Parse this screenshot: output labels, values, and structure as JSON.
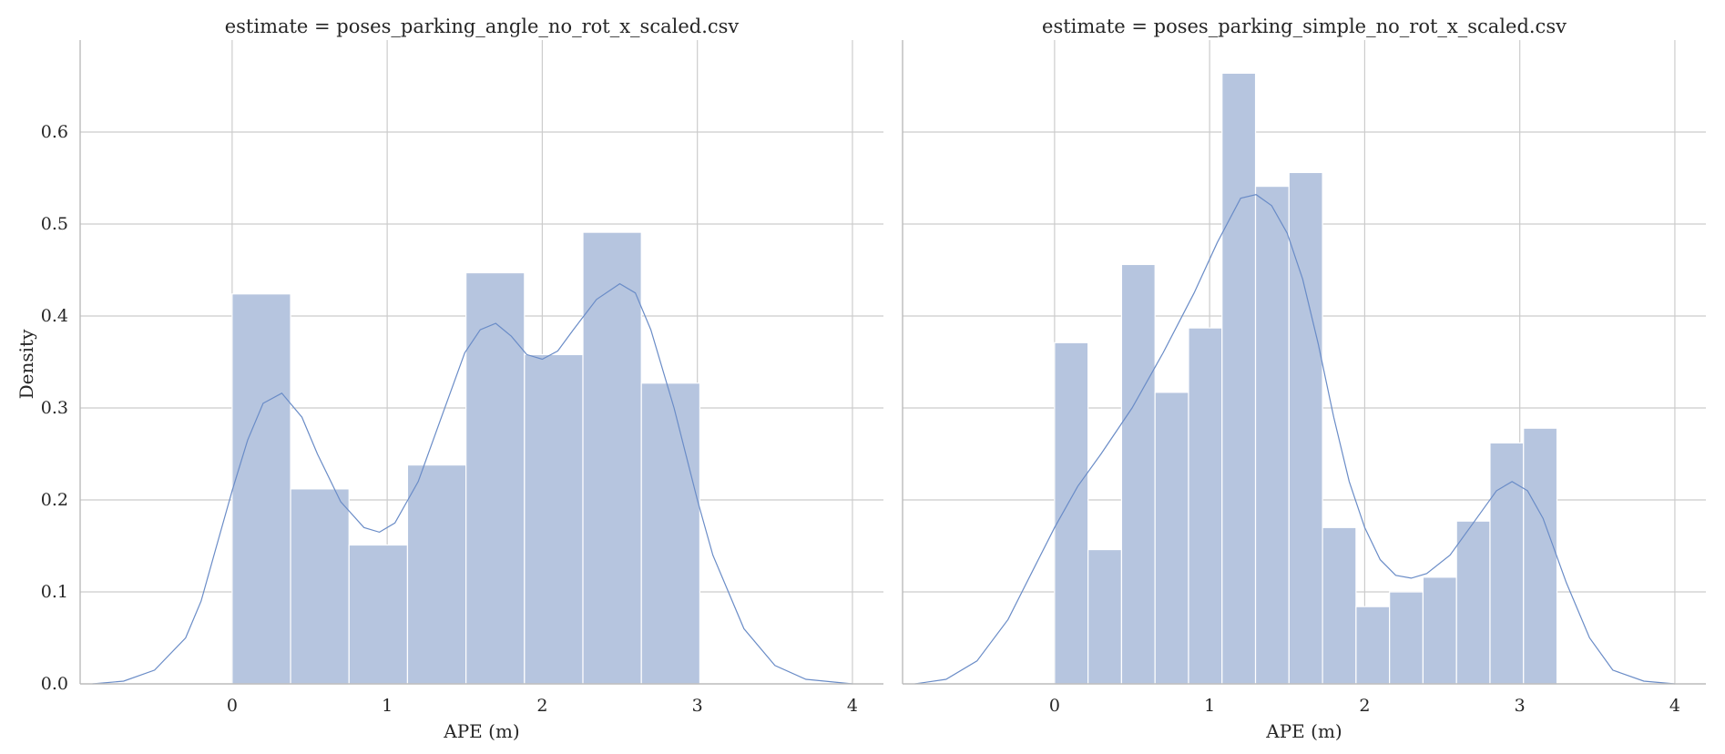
{
  "chart_data": {
    "type": "bar",
    "ylabel": "Density",
    "ylim": [
      0,
      0.7
    ],
    "yticks": [
      0.0,
      0.1,
      0.2,
      0.3,
      0.4,
      0.5,
      0.6
    ],
    "ytick_labels": [
      "0.0",
      "0.1",
      "0.2",
      "0.3",
      "0.4",
      "0.5",
      "0.6"
    ],
    "grid": true,
    "panels": [
      {
        "title": "estimate = poses_parking_angle_no_rot_x_scaled.csv",
        "xlabel": "APE (m)",
        "xlim": [
          -0.98,
          4.2
        ],
        "xticks": [
          0,
          1,
          2,
          3,
          4
        ],
        "xtick_labels": [
          "0",
          "1",
          "2",
          "3",
          "4"
        ],
        "bin_edges": [
          0.0,
          0.377,
          0.754,
          1.131,
          1.508,
          1.885,
          2.262,
          2.639,
          3.016
        ],
        "values": [
          0.424,
          0.212,
          0.151,
          0.238,
          0.447,
          0.358,
          0.491,
          0.327
        ],
        "kde": [
          [
            -0.9,
            0.0
          ],
          [
            -0.7,
            0.003
          ],
          [
            -0.5,
            0.015
          ],
          [
            -0.3,
            0.05
          ],
          [
            -0.2,
            0.09
          ],
          [
            -0.1,
            0.15
          ],
          [
            0.0,
            0.21
          ],
          [
            0.1,
            0.265
          ],
          [
            0.2,
            0.305
          ],
          [
            0.32,
            0.316
          ],
          [
            0.45,
            0.29
          ],
          [
            0.55,
            0.25
          ],
          [
            0.7,
            0.198
          ],
          [
            0.85,
            0.17
          ],
          [
            0.95,
            0.165
          ],
          [
            1.05,
            0.175
          ],
          [
            1.2,
            0.22
          ],
          [
            1.35,
            0.29
          ],
          [
            1.5,
            0.36
          ],
          [
            1.6,
            0.385
          ],
          [
            1.7,
            0.392
          ],
          [
            1.8,
            0.378
          ],
          [
            1.9,
            0.358
          ],
          [
            2.0,
            0.353
          ],
          [
            2.1,
            0.362
          ],
          [
            2.2,
            0.385
          ],
          [
            2.35,
            0.418
          ],
          [
            2.5,
            0.435
          ],
          [
            2.6,
            0.425
          ],
          [
            2.7,
            0.385
          ],
          [
            2.85,
            0.3
          ],
          [
            3.0,
            0.2
          ],
          [
            3.1,
            0.14
          ],
          [
            3.3,
            0.06
          ],
          [
            3.5,
            0.02
          ],
          [
            3.7,
            0.005
          ],
          [
            4.0,
            0.0
          ]
        ]
      },
      {
        "title": "estimate = poses_parking_simple_no_rot_x_scaled.csv",
        "xlabel": "APE (m)",
        "xlim": [
          -0.98,
          4.2
        ],
        "xticks": [
          0,
          1,
          2,
          3,
          4
        ],
        "xtick_labels": [
          "0",
          "1",
          "2",
          "3",
          "4"
        ],
        "bin_edges": [
          0.0,
          0.216,
          0.432,
          0.648,
          0.864,
          1.08,
          1.296,
          1.512,
          1.728,
          1.944,
          2.16,
          2.376,
          2.592,
          2.808,
          3.024,
          3.24
        ],
        "values": [
          0.371,
          0.146,
          0.456,
          0.317,
          0.387,
          0.664,
          0.541,
          0.556,
          0.17,
          0.084,
          0.1,
          0.116,
          0.177,
          0.262,
          0.278
        ],
        "kde": [
          [
            -0.9,
            0.0
          ],
          [
            -0.7,
            0.005
          ],
          [
            -0.5,
            0.025
          ],
          [
            -0.3,
            0.07
          ],
          [
            -0.15,
            0.12
          ],
          [
            0.0,
            0.17
          ],
          [
            0.15,
            0.215
          ],
          [
            0.3,
            0.25
          ],
          [
            0.5,
            0.3
          ],
          [
            0.7,
            0.36
          ],
          [
            0.9,
            0.425
          ],
          [
            1.05,
            0.48
          ],
          [
            1.2,
            0.528
          ],
          [
            1.3,
            0.532
          ],
          [
            1.4,
            0.52
          ],
          [
            1.5,
            0.49
          ],
          [
            1.6,
            0.44
          ],
          [
            1.7,
            0.37
          ],
          [
            1.8,
            0.29
          ],
          [
            1.9,
            0.22
          ],
          [
            2.0,
            0.17
          ],
          [
            2.1,
            0.135
          ],
          [
            2.2,
            0.118
          ],
          [
            2.3,
            0.115
          ],
          [
            2.4,
            0.12
          ],
          [
            2.55,
            0.14
          ],
          [
            2.7,
            0.175
          ],
          [
            2.85,
            0.21
          ],
          [
            2.95,
            0.22
          ],
          [
            3.05,
            0.21
          ],
          [
            3.15,
            0.18
          ],
          [
            3.3,
            0.11
          ],
          [
            3.45,
            0.05
          ],
          [
            3.6,
            0.015
          ],
          [
            3.8,
            0.003
          ],
          [
            4.0,
            0.0
          ]
        ]
      }
    ]
  }
}
